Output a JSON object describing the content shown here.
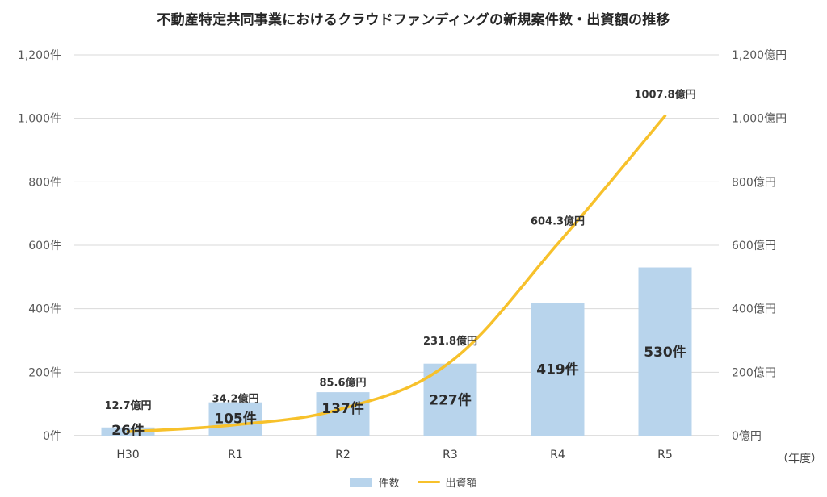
{
  "chart_data": {
    "type": "bar",
    "title": "不動産特定共同事業におけるクラウドファンディングの新規案件数・出資額の推移",
    "categories": [
      "H30",
      "R1",
      "R2",
      "R3",
      "R4",
      "R5"
    ],
    "x_unit": "（年度）",
    "series": [
      {
        "name": "件数",
        "type": "bar",
        "axis": "left",
        "values": [
          26,
          105,
          137,
          227,
          419,
          530
        ],
        "labels": [
          "26件",
          "105件",
          "137件",
          "227件",
          "419件",
          "530件"
        ],
        "color": "#b8d4ec"
      },
      {
        "name": "出資額",
        "type": "line",
        "axis": "right",
        "values": [
          12.7,
          34.2,
          85.6,
          231.8,
          604.3,
          1007.8
        ],
        "labels": [
          "12.7億円",
          "34.2億円",
          "85.6億円",
          "231.8億円",
          "604.3億円",
          "1007.8億円"
        ],
        "color": "#f7c12b"
      }
    ],
    "y_left": {
      "min": 0,
      "max": 1200,
      "step": 200,
      "tick_labels": [
        "0件",
        "200件",
        "400件",
        "600件",
        "800件",
        "1,000件",
        "1,200件"
      ]
    },
    "y_right": {
      "min": 0,
      "max": 1200,
      "step": 200,
      "tick_labels": [
        "0億円",
        "200億円",
        "400億円",
        "600億円",
        "800億円",
        "1,000億円",
        "1,200億円"
      ]
    },
    "grid": true,
    "legend_position": "bottom"
  }
}
